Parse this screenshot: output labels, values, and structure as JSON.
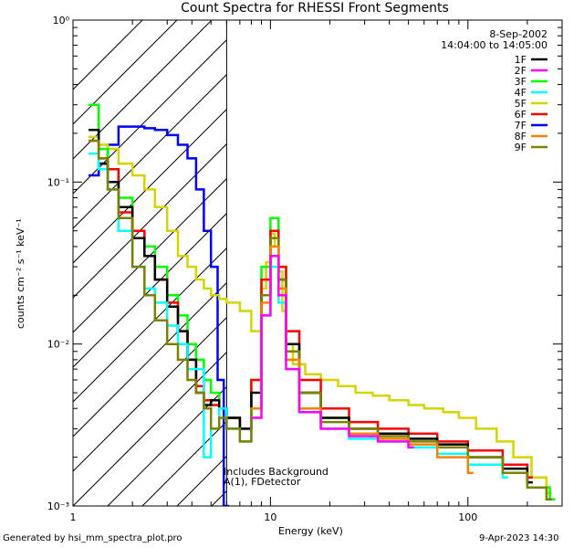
{
  "title": "Count Spectra for RHESSI Front Segments",
  "footer": {
    "generated_by": "Generated by hsi_mm_spectra_plot.pro",
    "timestamp": "9-Apr-2023 14:30"
  },
  "annotation": {
    "date": "8-Sep-2002",
    "time_range": "14:04:00 to 14:05:00",
    "overlay_text_1": "Includes Background",
    "overlay_text_2": "A(1), FDetector"
  },
  "chart_data": {
    "type": "line",
    "xscale": "log",
    "yscale": "log",
    "xlim": [
      1,
      300
    ],
    "ylim": [
      0.001,
      1
    ],
    "xlabel": "Energy (keV)",
    "ylabel": "counts cm⁻² s⁻¹ keV⁻¹",
    "x_ticks": [
      {
        "value": 1,
        "label": "1"
      },
      {
        "value": 10,
        "label": "10"
      },
      {
        "value": 100,
        "label": "100"
      }
    ],
    "y_ticks": [
      {
        "value": 1,
        "label": "10⁰"
      },
      {
        "value": 0.1,
        "label": "10⁻¹"
      },
      {
        "value": 0.01,
        "label": "10⁻²"
      },
      {
        "value": 0.001,
        "label": "10⁻³"
      }
    ],
    "hatched_region": {
      "x_min": 1,
      "x_max": 6
    },
    "legend": [
      {
        "name": "1F",
        "color": "#000000"
      },
      {
        "name": "2F",
        "color": "#ff00ff"
      },
      {
        "name": "3F",
        "color": "#00ff00"
      },
      {
        "name": "4F",
        "color": "#00ffff"
      },
      {
        "name": "5F",
        "color": "#d4d400"
      },
      {
        "name": "6F",
        "color": "#ff0000"
      },
      {
        "name": "7F",
        "color": "#0000ff"
      },
      {
        "name": "8F",
        "color": "#ff8000"
      },
      {
        "name": "9F",
        "color": "#808000"
      }
    ],
    "series": [
      {
        "name": "7F",
        "color": "#0000ff",
        "x": [
          1.2,
          1.35,
          1.5,
          1.7,
          2.0,
          2.3,
          2.6,
          3.0,
          3.4,
          3.8,
          4.2,
          4.6,
          5.0,
          5.4,
          5.8
        ],
        "y": [
          0.11,
          0.13,
          0.17,
          0.22,
          0.22,
          0.215,
          0.21,
          0.195,
          0.17,
          0.14,
          0.09,
          0.05,
          0.03,
          0.006,
          0.001
        ]
      },
      {
        "name": "5F",
        "color": "#d4d400",
        "x": [
          1.2,
          1.35,
          1.5,
          1.7,
          2.0,
          2.3,
          2.6,
          3.0,
          3.4,
          3.8,
          4.2,
          4.6,
          5.0,
          5.5,
          6.0,
          7.0,
          8.0,
          9.0,
          9.5,
          10.0,
          10.5,
          11.0,
          11.5,
          12.0,
          13.0,
          15.0,
          18.0,
          22.0,
          27.0,
          33.0,
          40.0,
          50.0,
          60.0,
          75.0,
          90.0,
          110.0,
          140.0,
          170.0,
          210.0,
          250.0
        ],
        "y": [
          0.19,
          0.17,
          0.16,
          0.13,
          0.11,
          0.09,
          0.07,
          0.05,
          0.035,
          0.03,
          0.025,
          0.022,
          0.02,
          0.019,
          0.018,
          0.016,
          0.012,
          0.022,
          0.032,
          0.048,
          0.04,
          0.028,
          0.016,
          0.01,
          0.0075,
          0.0065,
          0.006,
          0.0055,
          0.005,
          0.0048,
          0.0045,
          0.0042,
          0.004,
          0.0038,
          0.0035,
          0.003,
          0.0025,
          0.002,
          0.0015,
          0.0012
        ]
      },
      {
        "name": "3F",
        "color": "#00ff00",
        "x": [
          1.2,
          1.35,
          1.5,
          1.7,
          2.0,
          2.3,
          2.6,
          3.0,
          3.4,
          3.8,
          4.2,
          4.6,
          5.0,
          5.5,
          6.0,
          7.0,
          8.0,
          9.0,
          10.0,
          11.0,
          12.0,
          14.0,
          18.0,
          25.0,
          35.0,
          50.0,
          70.0,
          100.0,
          150.0,
          200.0,
          260.0
        ],
        "y": [
          0.3,
          0.16,
          0.12,
          0.08,
          0.05,
          0.04,
          0.03,
          0.02,
          0.015,
          0.01,
          0.008,
          0.006,
          0.005,
          0.004,
          0.0035,
          0.003,
          0.006,
          0.03,
          0.06,
          0.03,
          0.01,
          0.005,
          0.0035,
          0.003,
          0.0028,
          0.0026,
          0.0024,
          0.002,
          0.0016,
          0.0013,
          0.0011
        ]
      },
      {
        "name": "6F",
        "color": "#ff0000",
        "x": [
          1.2,
          1.35,
          1.5,
          1.7,
          2.0,
          2.3,
          2.6,
          3.0,
          3.4,
          3.8,
          4.2,
          4.6,
          5.0,
          5.5,
          6.0,
          7.0,
          8.0,
          9.0,
          10.0,
          11.0,
          12.0,
          14.0,
          18.0,
          25.0,
          35.0,
          50.0,
          70.0,
          100.0,
          150.0,
          200.0
        ],
        "y": [
          0.18,
          0.14,
          0.12,
          0.065,
          0.05,
          0.035,
          0.025,
          0.018,
          0.012,
          0.008,
          0.0055,
          0.0045,
          0.0042,
          0.004,
          0.0035,
          0.003,
          0.006,
          0.025,
          0.05,
          0.03,
          0.012,
          0.006,
          0.004,
          0.0033,
          0.003,
          0.0028,
          0.0025,
          0.0022,
          0.0018,
          0.0015
        ]
      },
      {
        "name": "1F",
        "color": "#000000",
        "x": [
          1.2,
          1.35,
          1.5,
          1.7,
          2.0,
          2.3,
          2.6,
          3.0,
          3.4,
          3.8,
          4.2,
          4.6,
          5.0,
          5.5,
          6.0,
          7.0,
          8.0,
          9.0,
          10.0,
          11.0,
          12.0,
          14.0,
          18.0,
          25.0,
          35.0,
          50.0,
          70.0,
          100.0,
          150.0,
          200.0
        ],
        "y": [
          0.21,
          0.13,
          0.1,
          0.07,
          0.045,
          0.035,
          0.025,
          0.017,
          0.012,
          0.008,
          0.005,
          0.0042,
          0.0045,
          0.004,
          0.0035,
          0.003,
          0.005,
          0.02,
          0.045,
          0.025,
          0.01,
          0.005,
          0.0035,
          0.003,
          0.0028,
          0.0026,
          0.0024,
          0.002,
          0.0017,
          0.0014
        ]
      },
      {
        "name": "4F",
        "color": "#00ffff",
        "x": [
          1.2,
          1.35,
          1.5,
          1.7,
          2.0,
          2.3,
          2.6,
          3.0,
          3.4,
          3.8,
          4.2,
          4.6,
          5.0,
          5.5,
          6.0,
          7.0,
          8.0,
          9.0,
          10.0,
          11.0,
          12.0,
          14.0,
          18.0,
          25.0,
          35.0,
          50.0,
          70.0,
          100.0,
          150.0
        ],
        "y": [
          0.15,
          0.12,
          0.09,
          0.05,
          0.03,
          0.022,
          0.018,
          0.013,
          0.01,
          0.007,
          0.007,
          0.002,
          0.003,
          0.004,
          0.003,
          0.0025,
          0.004,
          0.015,
          0.03,
          0.018,
          0.008,
          0.004,
          0.003,
          0.0026,
          0.0025,
          0.0023,
          0.0021,
          0.0018,
          0.0015
        ]
      },
      {
        "name": "9F",
        "color": "#808000",
        "x": [
          1.2,
          1.35,
          1.5,
          1.7,
          2.0,
          2.3,
          2.6,
          3.0,
          3.4,
          3.8,
          4.2,
          4.6,
          5.0,
          5.5,
          6.0,
          7.0,
          8.0,
          9.0,
          10.0,
          11.0,
          12.0,
          14.0,
          18.0,
          25.0,
          35.0,
          50.0,
          70.0,
          100.0,
          150.0,
          200.0,
          250.0
        ],
        "y": [
          0.18,
          0.14,
          0.09,
          0.06,
          0.03,
          0.02,
          0.014,
          0.01,
          0.008,
          0.006,
          0.005,
          0.004,
          0.003,
          0.0035,
          0.003,
          0.0025,
          0.004,
          0.02,
          0.045,
          0.025,
          0.009,
          0.005,
          0.0033,
          0.003,
          0.0027,
          0.0025,
          0.0023,
          0.002,
          0.0016,
          0.0013,
          0.0011
        ]
      },
      {
        "name": "8F",
        "color": "#ff8000",
        "x": [
          8.0,
          9.0,
          10.0,
          11.0,
          12.0,
          14.0,
          18.0,
          25.0,
          35.0,
          50.0,
          70.0,
          100.0
        ],
        "y": [
          0.004,
          0.018,
          0.04,
          0.022,
          0.008,
          0.004,
          0.003,
          0.0028,
          0.0026,
          0.0024,
          0.002,
          0.0016
        ]
      },
      {
        "name": "2F",
        "color": "#ff00ff",
        "x": [
          8.0,
          9.0,
          10.0,
          11.0,
          12.0,
          14.0,
          18.0,
          25.0,
          35.0,
          50.0
        ],
        "y": [
          0.0035,
          0.015,
          0.035,
          0.02,
          0.007,
          0.0038,
          0.003,
          0.0027,
          0.0025,
          0.0023
        ]
      }
    ]
  }
}
